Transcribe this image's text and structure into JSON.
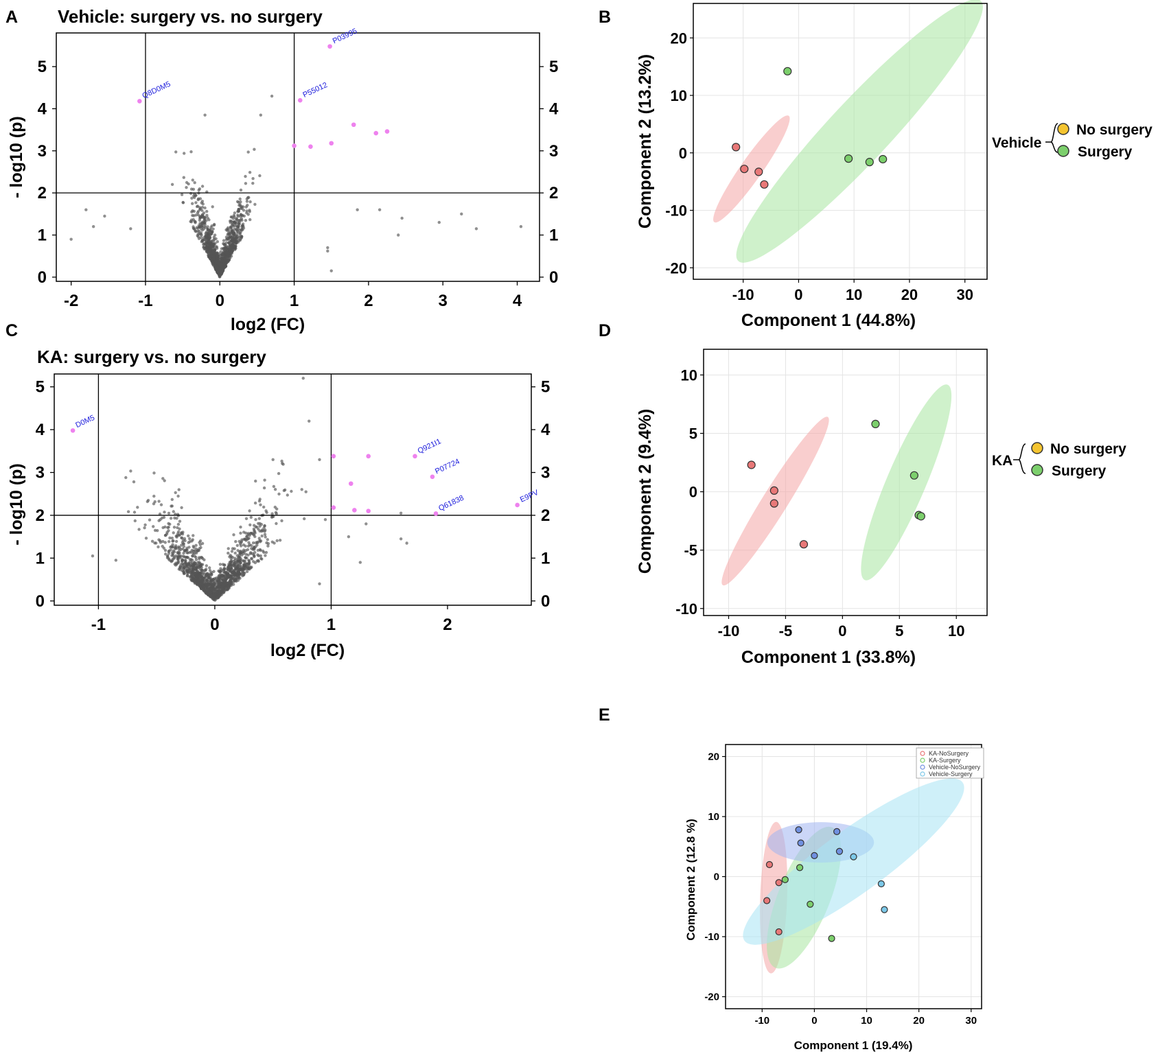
{
  "panels": {
    "A": "A",
    "B": "B",
    "C": "C",
    "D": "D",
    "E": "E"
  },
  "colors": {
    "ns_point": "#555555",
    "sig_point": "#ee82ee",
    "label_blue": "#1a1adc",
    "red_fill": "#f4a6a6",
    "red_point": "#e87878",
    "green_fill": "#a8e6a0",
    "green_point": "#7ccf6c",
    "blue_fill": "#a0b4f0",
    "blue_point": "#7090e0",
    "cyan_fill": "#a8e4f4",
    "cyan_point": "#7cc8e8",
    "yellow": "#f4c430"
  },
  "chart_data": [
    {
      "id": "A",
      "type": "scatter",
      "title": "Vehicle: surgery  vs. no surgery",
      "xlabel": "log2 (FC)",
      "ylabel": "- log10 (p)",
      "xlim": [
        -2.2,
        4.3
      ],
      "ylim": [
        -0.1,
        5.8
      ],
      "xticks": [
        -2,
        -1,
        0,
        1,
        2,
        3,
        4
      ],
      "xtick_labels": [
        "-2",
        "-1",
        "0",
        "1",
        "2",
        "3",
        "4"
      ],
      "yticks": [
        0,
        1,
        2,
        3,
        4,
        5
      ],
      "ytick_labels": [
        "0",
        "1",
        "2",
        "3",
        "4",
        "5"
      ],
      "thresholds": {
        "x": [
          -1,
          1
        ],
        "y": 2
      },
      "significant_points": [
        {
          "x": 1.48,
          "y": 5.48,
          "label": "P03995"
        },
        {
          "x": -1.08,
          "y": 4.18,
          "label": "Q8D0M5"
        },
        {
          "x": 1.08,
          "y": 4.2,
          "label": "P55012"
        },
        {
          "x": 1.0,
          "y": 3.12,
          "label": ""
        },
        {
          "x": 1.22,
          "y": 3.1,
          "label": ""
        },
        {
          "x": 1.5,
          "y": 3.18,
          "label": ""
        },
        {
          "x": 1.8,
          "y": 3.62,
          "label": ""
        },
        {
          "x": 2.1,
          "y": 3.42,
          "label": ""
        },
        {
          "x": 2.25,
          "y": 3.46,
          "label": ""
        }
      ]
    },
    {
      "id": "B",
      "type": "scatter",
      "xlabel": "Component 1 (44.8%)",
      "ylabel": "Component 2 (13.2%)",
      "xlim": [
        -19,
        34
      ],
      "ylim": [
        -22,
        26
      ],
      "xticks": [
        -10,
        0,
        10,
        20,
        30
      ],
      "xtick_labels": [
        "-10",
        "0",
        "10",
        "20",
        "30"
      ],
      "yticks": [
        -20,
        -10,
        0,
        10,
        20
      ],
      "ytick_labels": [
        "-20",
        "-10",
        "0",
        "10",
        "20"
      ],
      "legend_group": "Vehicle",
      "series": [
        {
          "name": "No surgery",
          "points": [
            [
              -11.3,
              1.0
            ],
            [
              -9.8,
              -2.8
            ],
            [
              -7.2,
              -3.3
            ],
            [
              -6.2,
              -5.5
            ]
          ],
          "ellipse": {
            "cx": -8.5,
            "cy": -2.8,
            "rx": 11.5,
            "ry": 1.9,
            "angle_deg": -55
          }
        },
        {
          "name": "Surgery",
          "points": [
            [
              -2.0,
              14.2
            ],
            [
              9.0,
              -1.0
            ],
            [
              12.8,
              -1.6
            ],
            [
              15.2,
              -1.1
            ]
          ],
          "ellipse": {
            "cx": 11.0,
            "cy": 3.8,
            "rx": 31.5,
            "ry": 5.4,
            "angle_deg": -47
          }
        }
      ],
      "legend": [
        "No surgery",
        "Surgery"
      ]
    },
    {
      "id": "C",
      "type": "scatter",
      "title": "KA: surgery  vs. no surgery",
      "xlabel": "log2 (FC)",
      "ylabel": "- log10 (p)",
      "xlim": [
        -1.38,
        2.72
      ],
      "ylim": [
        -0.1,
        5.3
      ],
      "xticks": [
        -1,
        0,
        1,
        2
      ],
      "xtick_labels": [
        "-1",
        "0",
        "1",
        "2"
      ],
      "yticks": [
        0,
        1,
        2,
        3,
        4,
        5
      ],
      "ytick_labels": [
        "0",
        "1",
        "2",
        "3",
        "4",
        "5"
      ],
      "thresholds": {
        "x": [
          -1,
          1
        ],
        "y": 2
      },
      "significant_points": [
        {
          "x": -1.22,
          "y": 3.98,
          "label": "D0M5"
        },
        {
          "x": 1.72,
          "y": 3.38,
          "label": "Q921I1"
        },
        {
          "x": 1.87,
          "y": 2.9,
          "label": "P07724"
        },
        {
          "x": 1.9,
          "y": 2.04,
          "label": "Q61838"
        },
        {
          "x": 2.6,
          "y": 2.24,
          "label": "E9PV"
        },
        {
          "x": 1.02,
          "y": 3.38,
          "label": ""
        },
        {
          "x": 1.32,
          "y": 3.38,
          "label": ""
        },
        {
          "x": 1.17,
          "y": 2.74,
          "label": ""
        },
        {
          "x": 1.02,
          "y": 2.18,
          "label": ""
        },
        {
          "x": 1.2,
          "y": 2.12,
          "label": ""
        },
        {
          "x": 1.32,
          "y": 2.1,
          "label": ""
        }
      ]
    },
    {
      "id": "D",
      "type": "scatter",
      "xlabel": "Component 1 (33.8%)",
      "ylabel": "Component 2 (9.4%)",
      "xlim": [
        -12.2,
        12.7
      ],
      "ylim": [
        -10.6,
        12.2
      ],
      "xticks": [
        -10,
        -5,
        0,
        5,
        10
      ],
      "xtick_labels": [
        "-10",
        "-5",
        "0",
        "5",
        "10"
      ],
      "yticks": [
        -10,
        -5,
        0,
        5,
        10
      ],
      "ytick_labels": [
        "-10",
        "-5",
        "0",
        "5",
        "10"
      ],
      "legend_group": "KA",
      "series": [
        {
          "name": "No surgery",
          "points": [
            [
              -8.0,
              2.3
            ],
            [
              -6.0,
              0.1
            ],
            [
              -6.0,
              -1.0
            ],
            [
              -3.4,
              -4.5
            ]
          ],
          "ellipse": {
            "cx": -5.9,
            "cy": -0.8,
            "rx": 8.6,
            "ry": 1.1,
            "angle_deg": -58
          }
        },
        {
          "name": "Surgery",
          "points": [
            [
              2.9,
              5.8
            ],
            [
              6.3,
              1.4
            ],
            [
              6.7,
              -2.0
            ],
            [
              6.9,
              -2.1
            ]
          ],
          "ellipse": {
            "cx": 5.6,
            "cy": 0.8,
            "rx": 9.2,
            "ry": 1.7,
            "angle_deg": -67
          }
        }
      ],
      "legend": [
        "No surgery",
        "Surgery"
      ]
    },
    {
      "id": "E",
      "type": "scatter",
      "xlabel": "Component 1 (19.4%)",
      "ylabel": "Component 2 (12.8 %)",
      "xlim": [
        -17,
        32
      ],
      "ylim": [
        -22,
        22
      ],
      "xticks": [
        -10,
        0,
        10,
        20,
        30
      ],
      "xtick_labels": [
        "-10",
        "0",
        "10",
        "20",
        "30"
      ],
      "yticks": [
        -20,
        -10,
        0,
        10,
        20
      ],
      "ytick_labels": [
        "-20",
        "-10",
        "0",
        "10",
        "20"
      ],
      "series": [
        {
          "name": "KA-NoSurgery",
          "points": [
            [
              -8.6,
              2.0
            ],
            [
              -6.8,
              -1.0
            ],
            [
              -9.1,
              -4.0
            ],
            [
              -6.8,
              -9.2
            ]
          ],
          "ellipse": {
            "cx": -7.8,
            "cy": -3.5,
            "rx": 13.5,
            "ry": 2.4,
            "angle_deg": -88
          }
        },
        {
          "name": "KA-Surgery",
          "points": [
            [
              -2.8,
              1.5
            ],
            [
              -5.6,
              -0.5
            ],
            [
              -0.8,
              -4.6
            ],
            [
              3.3,
              -10.3
            ]
          ],
          "ellipse": {
            "cx": -2.0,
            "cy": -3.5,
            "rx": 13.5,
            "ry": 4.6,
            "angle_deg": -68
          }
        },
        {
          "name": "Vehicle-NoSurgery",
          "points": [
            [
              -3.0,
              7.8
            ],
            [
              -2.6,
              5.6
            ],
            [
              0.0,
              3.5
            ],
            [
              4.3,
              7.5
            ],
            [
              4.8,
              4.2
            ]
          ],
          "ellipse": {
            "cx": 1.2,
            "cy": 5.7,
            "rx": 9.5,
            "ry": 3.6,
            "angle_deg": 0
          }
        },
        {
          "name": "Vehicle-Surgery",
          "points": [
            [
              7.5,
              3.3
            ],
            [
              12.8,
              -1.2
            ],
            [
              13.4,
              -5.5
            ]
          ],
          "ellipse": {
            "cx": 7.5,
            "cy": 2.5,
            "rx": 24.0,
            "ry": 5.6,
            "angle_deg": -36
          }
        }
      ],
      "legend": [
        "KA-NoSurgery",
        "KA-Surgery",
        "Vehicle-NoSurgery",
        "Vehicle-Surgery"
      ]
    }
  ]
}
